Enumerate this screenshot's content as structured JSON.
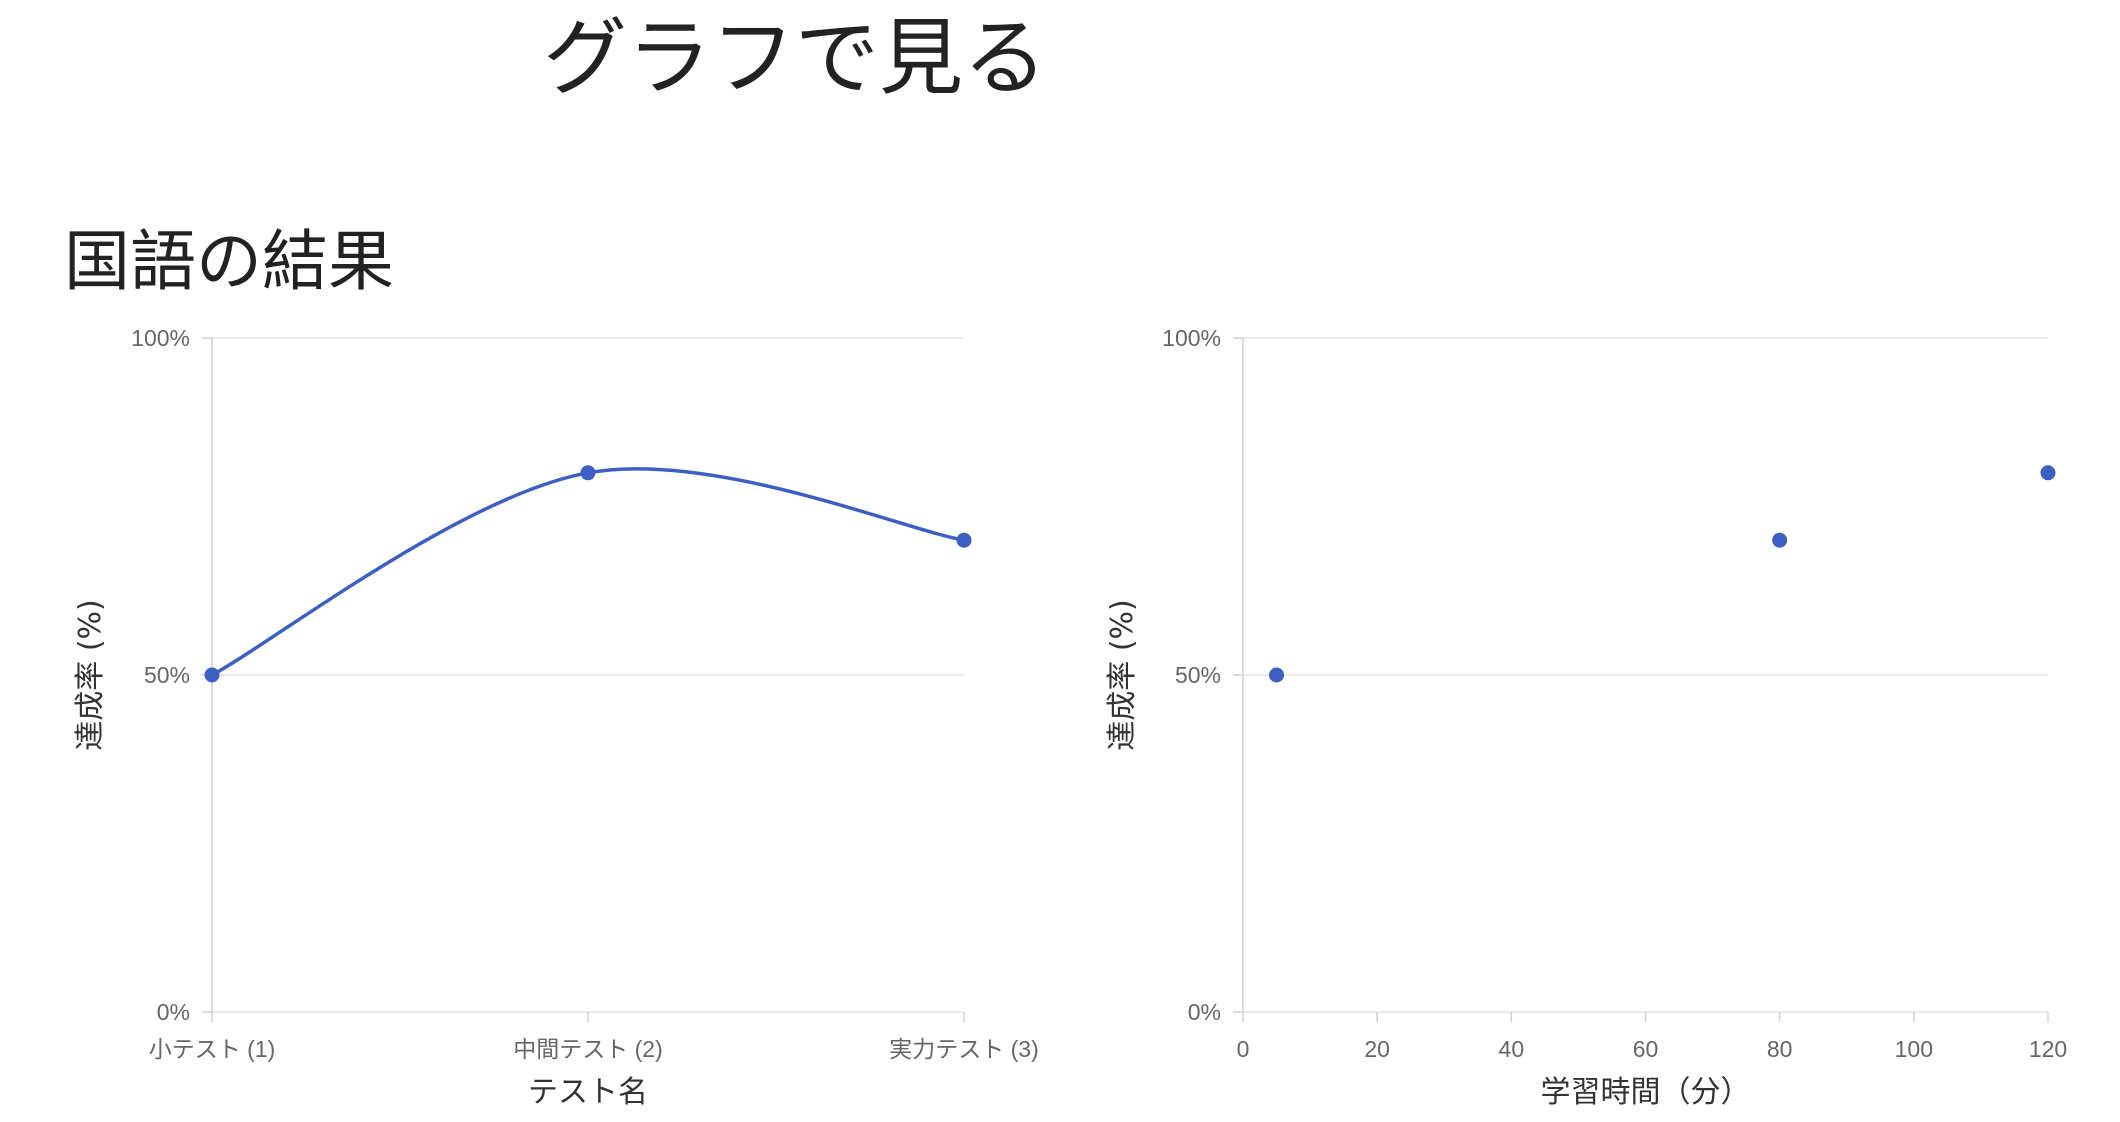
{
  "page": {
    "title": "グラフで見る"
  },
  "section": {
    "title": "国語の結果"
  },
  "chart_data": [
    {
      "type": "line",
      "categories": [
        "小テスト (1)",
        "中間テスト (2)",
        "実力テスト (3)"
      ],
      "series": [
        {
          "values": [
            50,
            80,
            70
          ],
          "color": "#3d5fc4"
        }
      ],
      "xlabel": "テスト名",
      "ylabel": "達成率 (%)",
      "ylim": [
        0,
        100
      ],
      "yticks": [
        "0%",
        "50%",
        "100%"
      ],
      "grid": true,
      "smooth": true
    },
    {
      "type": "scatter",
      "points": [
        {
          "x": 5,
          "y": 50
        },
        {
          "x": 80,
          "y": 70
        },
        {
          "x": 120,
          "y": 80
        }
      ],
      "color": "#3d5fc4",
      "xlabel": "学習時間（分）",
      "ylabel": "達成率 (%)",
      "xlim": [
        0,
        120
      ],
      "xticks": [
        "0",
        "20",
        "40",
        "60",
        "80",
        "100",
        "120"
      ],
      "ylim": [
        0,
        100
      ],
      "yticks": [
        "0%",
        "50%",
        "100%"
      ],
      "grid": true
    }
  ]
}
